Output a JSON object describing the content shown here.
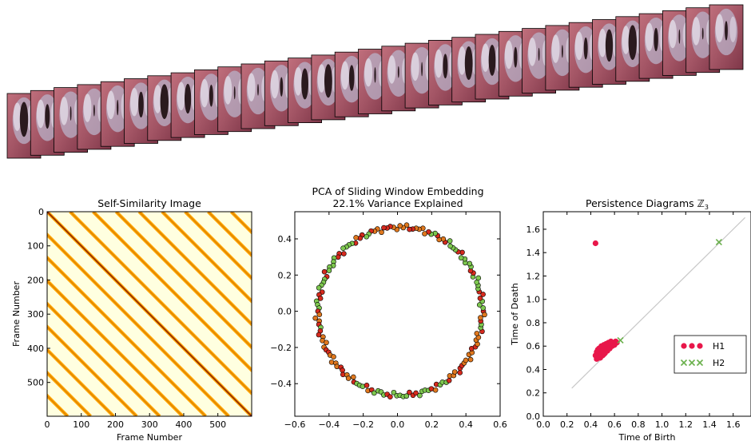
{
  "filmstrip": {
    "frame_count": 31,
    "colors": {
      "tissue": "#a35565",
      "glottis": "#2a1a1e",
      "highlight": "#e8e4ee"
    },
    "glottal_opening": [
      0.95,
      0.55,
      0.15,
      0.05,
      0.2,
      0.6,
      0.95,
      0.75,
      0.45,
      0.1,
      0.05,
      0.35,
      0.8,
      0.9,
      0.6,
      0.2,
      0.05,
      0.15,
      0.55,
      0.9,
      0.8,
      0.4,
      0.1,
      0.1,
      0.45,
      0.85,
      0.95,
      0.5,
      0.15,
      0.05,
      0.35
    ]
  },
  "chart_data": [
    {
      "type": "heatmap",
      "title": "Self-Similarity Image",
      "xlabel": "Frame Number",
      "ylabel": "Frame Number",
      "xlim": [
        0,
        599
      ],
      "ylim": [
        599,
        0
      ],
      "xticks": [
        "0",
        "100",
        "200",
        "300",
        "400",
        "500"
      ],
      "yticks": [
        "0",
        "100",
        "200",
        "300",
        "400",
        "500"
      ],
      "frames": 600,
      "period_frames": 67.5,
      "colors": {
        "low": "#8b2200",
        "mid": "#ffa500",
        "high": "#ffffe0"
      }
    },
    {
      "type": "scatter",
      "title": "PCA of Sliding Window Embedding",
      "subtitle": "22.1% Variance Explained",
      "xlim": [
        -0.6,
        0.6
      ],
      "ylim": [
        -0.58,
        0.55
      ],
      "xticks": [
        "−0.6",
        "−0.4",
        "−0.2",
        "0.0",
        "0.2",
        "0.4",
        "0.6"
      ],
      "yticks": [
        "0.4",
        "0.2",
        "0.0",
        "−0.2",
        "−0.4"
      ],
      "point_count": 160,
      "radius_x": 0.48,
      "radius_y": 0.465,
      "center": [
        0.015,
        0.0
      ],
      "colors": {
        "fill_a": "#d62a1e",
        "fill_b": "#7ec850",
        "edge": "#000000"
      }
    },
    {
      "type": "scatter",
      "title": "Persistence Diagrams ℤ",
      "title_subscript": "3",
      "xlabel": "Time of Birth",
      "ylabel": "Time of Death",
      "xlim": [
        0.0,
        1.75
      ],
      "ylim": [
        0.0,
        1.75
      ],
      "xticks": [
        "0.0",
        "0.2",
        "0.4",
        "0.6",
        "0.8",
        "1.0",
        "1.2",
        "1.4",
        "1.6"
      ],
      "yticks": [
        "0.0",
        "0.2",
        "0.4",
        "0.6",
        "0.8",
        "1.0",
        "1.2",
        "1.4",
        "1.6"
      ],
      "diagonal": [
        0.24,
        1.7
      ],
      "legend_position": "center-right",
      "series": [
        {
          "name": "H1",
          "marker": "circle",
          "color": "#e8174a",
          "points": [
            [
              0.44,
              1.48
            ],
            [
              0.45,
              0.49
            ],
            [
              0.46,
              0.5
            ],
            [
              0.47,
              0.51
            ],
            [
              0.48,
              0.52
            ],
            [
              0.46,
              0.53
            ],
            [
              0.47,
              0.55
            ],
            [
              0.48,
              0.54
            ],
            [
              0.49,
              0.56
            ],
            [
              0.5,
              0.55
            ],
            [
              0.51,
              0.57
            ],
            [
              0.5,
              0.59
            ],
            [
              0.52,
              0.58
            ],
            [
              0.53,
              0.6
            ],
            [
              0.54,
              0.59
            ],
            [
              0.55,
              0.61
            ],
            [
              0.56,
              0.6
            ],
            [
              0.57,
              0.62
            ],
            [
              0.58,
              0.63
            ],
            [
              0.59,
              0.62
            ],
            [
              0.6,
              0.63
            ],
            [
              0.61,
              0.64
            ],
            [
              0.62,
              0.63
            ],
            [
              0.46,
              0.57
            ],
            [
              0.47,
              0.58
            ],
            [
              0.49,
              0.6
            ],
            [
              0.51,
              0.61
            ],
            [
              0.53,
              0.62
            ],
            [
              0.55,
              0.63
            ],
            [
              0.57,
              0.64
            ],
            [
              0.45,
              0.55
            ],
            [
              0.48,
              0.5
            ],
            [
              0.5,
              0.52
            ],
            [
              0.52,
              0.54
            ],
            [
              0.54,
              0.56
            ],
            [
              0.56,
              0.58
            ],
            [
              0.58,
              0.6
            ],
            [
              0.6,
              0.61
            ],
            [
              0.49,
              0.53
            ],
            [
              0.51,
              0.53
            ],
            [
              0.44,
              0.52
            ],
            [
              0.45,
              0.51
            ]
          ]
        },
        {
          "name": "H2",
          "marker": "x",
          "color": "#6ab04c",
          "points": [
            [
              1.48,
              1.49
            ],
            [
              0.65,
              0.65
            ]
          ]
        }
      ]
    }
  ]
}
